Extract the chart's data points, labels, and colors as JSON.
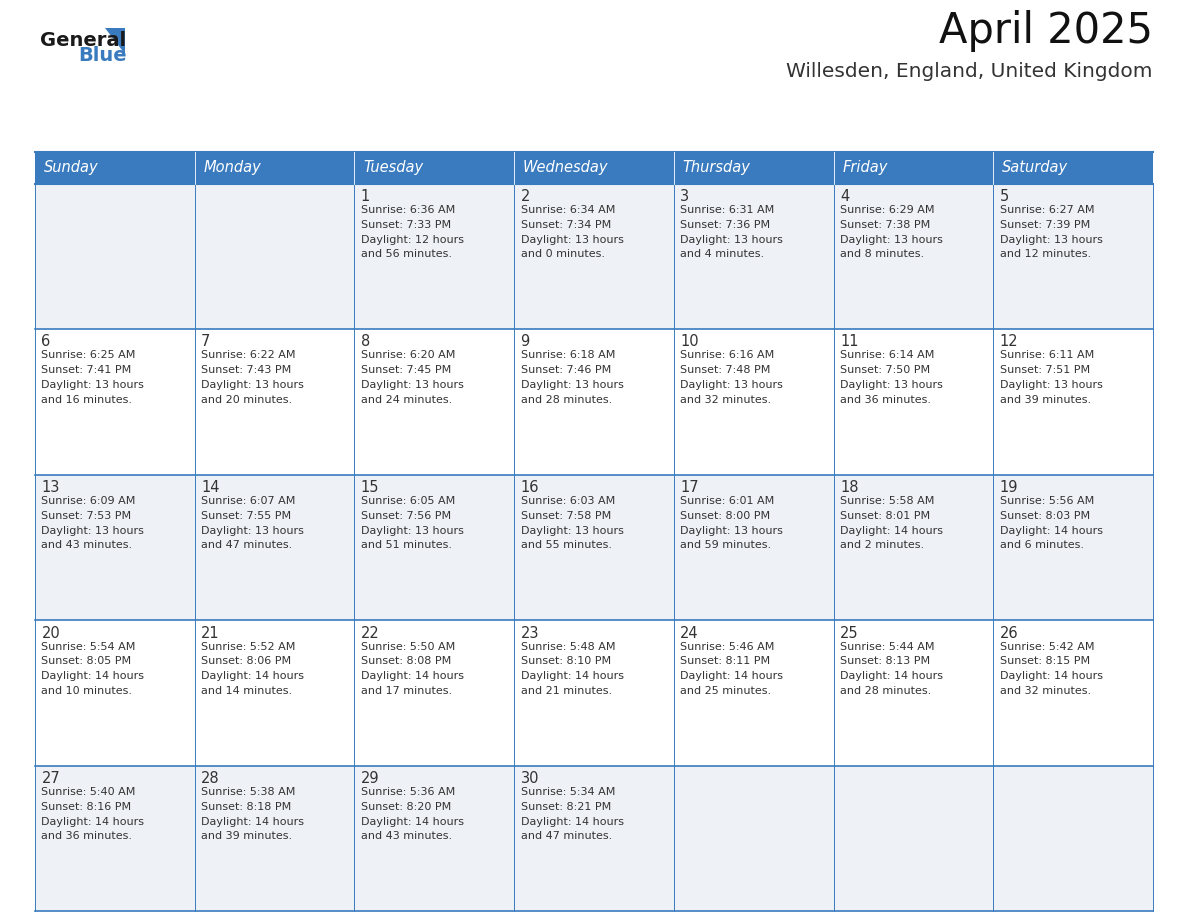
{
  "title": "April 2025",
  "subtitle": "Willesden, England, United Kingdom",
  "header_bg_color": "#3a7bbf",
  "header_text_color": "#ffffff",
  "cell_bg_color_light": "#eef2f7",
  "cell_bg_color_white": "#ffffff",
  "grid_line_color": "#3a7bbf",
  "text_color": "#333333",
  "days_of_week": [
    "Sunday",
    "Monday",
    "Tuesday",
    "Wednesday",
    "Thursday",
    "Friday",
    "Saturday"
  ],
  "weeks": [
    [
      {
        "day": "",
        "sunrise": "",
        "sunset": "",
        "daylight": ""
      },
      {
        "day": "",
        "sunrise": "",
        "sunset": "",
        "daylight": ""
      },
      {
        "day": "1",
        "sunrise": "Sunrise: 6:36 AM",
        "sunset": "Sunset: 7:33 PM",
        "daylight": "Daylight: 12 hours\nand 56 minutes."
      },
      {
        "day": "2",
        "sunrise": "Sunrise: 6:34 AM",
        "sunset": "Sunset: 7:34 PM",
        "daylight": "Daylight: 13 hours\nand 0 minutes."
      },
      {
        "day": "3",
        "sunrise": "Sunrise: 6:31 AM",
        "sunset": "Sunset: 7:36 PM",
        "daylight": "Daylight: 13 hours\nand 4 minutes."
      },
      {
        "day": "4",
        "sunrise": "Sunrise: 6:29 AM",
        "sunset": "Sunset: 7:38 PM",
        "daylight": "Daylight: 13 hours\nand 8 minutes."
      },
      {
        "day": "5",
        "sunrise": "Sunrise: 6:27 AM",
        "sunset": "Sunset: 7:39 PM",
        "daylight": "Daylight: 13 hours\nand 12 minutes."
      }
    ],
    [
      {
        "day": "6",
        "sunrise": "Sunrise: 6:25 AM",
        "sunset": "Sunset: 7:41 PM",
        "daylight": "Daylight: 13 hours\nand 16 minutes."
      },
      {
        "day": "7",
        "sunrise": "Sunrise: 6:22 AM",
        "sunset": "Sunset: 7:43 PM",
        "daylight": "Daylight: 13 hours\nand 20 minutes."
      },
      {
        "day": "8",
        "sunrise": "Sunrise: 6:20 AM",
        "sunset": "Sunset: 7:45 PM",
        "daylight": "Daylight: 13 hours\nand 24 minutes."
      },
      {
        "day": "9",
        "sunrise": "Sunrise: 6:18 AM",
        "sunset": "Sunset: 7:46 PM",
        "daylight": "Daylight: 13 hours\nand 28 minutes."
      },
      {
        "day": "10",
        "sunrise": "Sunrise: 6:16 AM",
        "sunset": "Sunset: 7:48 PM",
        "daylight": "Daylight: 13 hours\nand 32 minutes."
      },
      {
        "day": "11",
        "sunrise": "Sunrise: 6:14 AM",
        "sunset": "Sunset: 7:50 PM",
        "daylight": "Daylight: 13 hours\nand 36 minutes."
      },
      {
        "day": "12",
        "sunrise": "Sunrise: 6:11 AM",
        "sunset": "Sunset: 7:51 PM",
        "daylight": "Daylight: 13 hours\nand 39 minutes."
      }
    ],
    [
      {
        "day": "13",
        "sunrise": "Sunrise: 6:09 AM",
        "sunset": "Sunset: 7:53 PM",
        "daylight": "Daylight: 13 hours\nand 43 minutes."
      },
      {
        "day": "14",
        "sunrise": "Sunrise: 6:07 AM",
        "sunset": "Sunset: 7:55 PM",
        "daylight": "Daylight: 13 hours\nand 47 minutes."
      },
      {
        "day": "15",
        "sunrise": "Sunrise: 6:05 AM",
        "sunset": "Sunset: 7:56 PM",
        "daylight": "Daylight: 13 hours\nand 51 minutes."
      },
      {
        "day": "16",
        "sunrise": "Sunrise: 6:03 AM",
        "sunset": "Sunset: 7:58 PM",
        "daylight": "Daylight: 13 hours\nand 55 minutes."
      },
      {
        "day": "17",
        "sunrise": "Sunrise: 6:01 AM",
        "sunset": "Sunset: 8:00 PM",
        "daylight": "Daylight: 13 hours\nand 59 minutes."
      },
      {
        "day": "18",
        "sunrise": "Sunrise: 5:58 AM",
        "sunset": "Sunset: 8:01 PM",
        "daylight": "Daylight: 14 hours\nand 2 minutes."
      },
      {
        "day": "19",
        "sunrise": "Sunrise: 5:56 AM",
        "sunset": "Sunset: 8:03 PM",
        "daylight": "Daylight: 14 hours\nand 6 minutes."
      }
    ],
    [
      {
        "day": "20",
        "sunrise": "Sunrise: 5:54 AM",
        "sunset": "Sunset: 8:05 PM",
        "daylight": "Daylight: 14 hours\nand 10 minutes."
      },
      {
        "day": "21",
        "sunrise": "Sunrise: 5:52 AM",
        "sunset": "Sunset: 8:06 PM",
        "daylight": "Daylight: 14 hours\nand 14 minutes."
      },
      {
        "day": "22",
        "sunrise": "Sunrise: 5:50 AM",
        "sunset": "Sunset: 8:08 PM",
        "daylight": "Daylight: 14 hours\nand 17 minutes."
      },
      {
        "day": "23",
        "sunrise": "Sunrise: 5:48 AM",
        "sunset": "Sunset: 8:10 PM",
        "daylight": "Daylight: 14 hours\nand 21 minutes."
      },
      {
        "day": "24",
        "sunrise": "Sunrise: 5:46 AM",
        "sunset": "Sunset: 8:11 PM",
        "daylight": "Daylight: 14 hours\nand 25 minutes."
      },
      {
        "day": "25",
        "sunrise": "Sunrise: 5:44 AM",
        "sunset": "Sunset: 8:13 PM",
        "daylight": "Daylight: 14 hours\nand 28 minutes."
      },
      {
        "day": "26",
        "sunrise": "Sunrise: 5:42 AM",
        "sunset": "Sunset: 8:15 PM",
        "daylight": "Daylight: 14 hours\nand 32 minutes."
      }
    ],
    [
      {
        "day": "27",
        "sunrise": "Sunrise: 5:40 AM",
        "sunset": "Sunset: 8:16 PM",
        "daylight": "Daylight: 14 hours\nand 36 minutes."
      },
      {
        "day": "28",
        "sunrise": "Sunrise: 5:38 AM",
        "sunset": "Sunset: 8:18 PM",
        "daylight": "Daylight: 14 hours\nand 39 minutes."
      },
      {
        "day": "29",
        "sunrise": "Sunrise: 5:36 AM",
        "sunset": "Sunset: 8:20 PM",
        "daylight": "Daylight: 14 hours\nand 43 minutes."
      },
      {
        "day": "30",
        "sunrise": "Sunrise: 5:34 AM",
        "sunset": "Sunset: 8:21 PM",
        "daylight": "Daylight: 14 hours\nand 47 minutes."
      },
      {
        "day": "",
        "sunrise": "",
        "sunset": "",
        "daylight": ""
      },
      {
        "day": "",
        "sunrise": "",
        "sunset": "",
        "daylight": ""
      },
      {
        "day": "",
        "sunrise": "",
        "sunset": "",
        "daylight": ""
      }
    ]
  ],
  "logo_general_color": "#1a1a1a",
  "logo_blue_color": "#3a7bbf",
  "logo_triangle_color": "#3a7bbf"
}
